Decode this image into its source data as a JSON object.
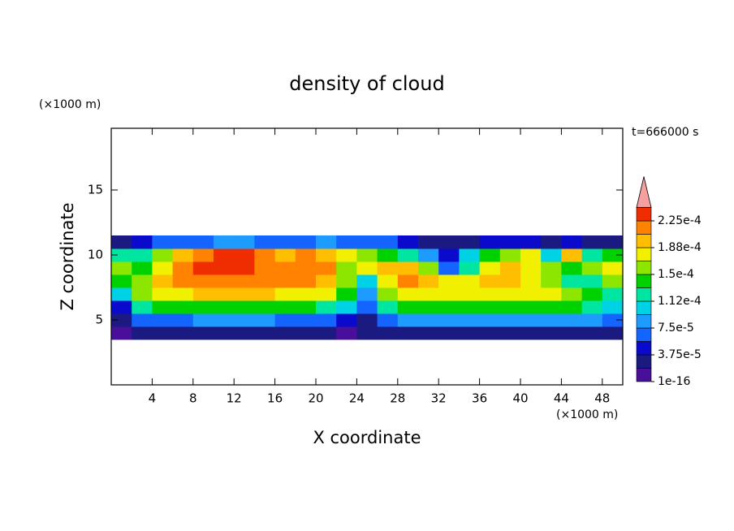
{
  "chart_data": {
    "type": "contour",
    "title": "density of cloud",
    "x_label": "X coordinate",
    "y_label": "Z coordinate",
    "x_unit": "(×1000 m)",
    "y_unit": "(×1000 m)",
    "annotation": "t=666000 s",
    "xlim": [
      0,
      50
    ],
    "ylim": [
      0,
      19.75
    ],
    "xticks": [
      4,
      8,
      12,
      16,
      20,
      24,
      28,
      32,
      36,
      40,
      44,
      48
    ],
    "yticks": [
      5,
      10,
      15
    ],
    "x": [
      1,
      3,
      5,
      7,
      9,
      11,
      13,
      15,
      17,
      19,
      21,
      23,
      25,
      27,
      29,
      31,
      33,
      35,
      37,
      39,
      41,
      43,
      45,
      47,
      49
    ],
    "z": [
      4,
      5,
      6,
      7,
      8,
      9,
      10,
      11
    ],
    "values": [
      [
        9e-06,
        2.8e-05,
        2.8e-05,
        2.8e-05,
        2.8e-05,
        2.8e-05,
        2.8e-05,
        2.8e-05,
        2.8e-05,
        2.8e-05,
        2.8e-05,
        9e-06,
        2.8e-05,
        2.8e-05,
        2.8e-05,
        2.8e-05,
        2.8e-05,
        2.8e-05,
        2.8e-05,
        2.8e-05,
        2.8e-05,
        2.8e-05,
        2.8e-05,
        2.8e-05,
        2.8e-05
      ],
      [
        2.8e-05,
        6.6e-05,
        6.6e-05,
        6.6e-05,
        8.4e-05,
        8.4e-05,
        8.4e-05,
        8.4e-05,
        6.6e-05,
        6.6e-05,
        6.6e-05,
        4.7e-05,
        2.8e-05,
        6.6e-05,
        8.4e-05,
        8.4e-05,
        8.4e-05,
        8.4e-05,
        8.4e-05,
        8.4e-05,
        8.4e-05,
        8.4e-05,
        8.4e-05,
        8.4e-05,
        6.6e-05
      ],
      [
        4.7e-05,
        0.000122,
        0.000141,
        0.000141,
        0.000141,
        0.000141,
        0.000141,
        0.000141,
        0.000141,
        0.000141,
        0.000122,
        0.000103,
        6.6e-05,
        0.000122,
        0.000141,
        0.000141,
        0.000141,
        0.000141,
        0.000141,
        0.000141,
        0.000141,
        0.000141,
        0.000141,
        0.000122,
        0.000103
      ],
      [
        0.000103,
        0.000159,
        0.000178,
        0.000178,
        0.000197,
        0.000197,
        0.000197,
        0.000197,
        0.000178,
        0.000178,
        0.000178,
        0.000141,
        8.4e-05,
        0.000159,
        0.000178,
        0.000178,
        0.000178,
        0.000178,
        0.000178,
        0.000178,
        0.000178,
        0.000178,
        0.000159,
        0.000141,
        0.000122
      ],
      [
        0.000141,
        0.000159,
        0.000197,
        0.000216,
        0.000216,
        0.000216,
        0.000216,
        0.000216,
        0.000216,
        0.000216,
        0.000197,
        0.000159,
        0.000103,
        0.000178,
        0.000216,
        0.000197,
        0.000178,
        0.000178,
        0.000197,
        0.000197,
        0.000178,
        0.000159,
        0.000122,
        0.000122,
        0.000159
      ],
      [
        0.000159,
        0.000141,
        0.000178,
        0.000216,
        0.000234,
        0.000234,
        0.000234,
        0.000216,
        0.000216,
        0.000216,
        0.000216,
        0.000159,
        0.000178,
        0.000197,
        0.000197,
        0.000159,
        6.6e-05,
        0.000122,
        0.000178,
        0.000197,
        0.000178,
        0.000159,
        0.000141,
        0.000159,
        0.000178
      ],
      [
        0.000122,
        0.000122,
        0.000159,
        0.000197,
        0.000216,
        0.000234,
        0.000234,
        0.000216,
        0.000197,
        0.000216,
        0.000197,
        0.000178,
        0.000159,
        0.000141,
        0.000122,
        8.4e-05,
        4.7e-05,
        0.000103,
        0.000141,
        0.000159,
        0.000178,
        0.000103,
        0.000197,
        0.000122,
        0.000141
      ],
      [
        2.8e-05,
        4.7e-05,
        6.6e-05,
        6.6e-05,
        6.6e-05,
        8.4e-05,
        8.4e-05,
        6.6e-05,
        6.6e-05,
        6.6e-05,
        8.4e-05,
        6.6e-05,
        6.6e-05,
        6.6e-05,
        4.7e-05,
        2.8e-05,
        2.8e-05,
        2.8e-05,
        4.7e-05,
        4.7e-05,
        4.7e-05,
        2.8e-05,
        4.7e-05,
        2.8e-05,
        2.8e-05
      ]
    ],
    "colorbar": {
      "levels": [
        1e-16,
        1.875e-05,
        3.75e-05,
        5.625e-05,
        7.5e-05,
        9.375e-05,
        0.0001125,
        0.00013125,
        0.00015,
        0.00016875,
        0.0001875,
        0.00020625,
        0.000225,
        0.00024375
      ],
      "colors": [
        "#4a0f9a",
        "#1a1a80",
        "#0a0acd",
        "#1464ff",
        "#1e9bff",
        "#00d2e6",
        "#00e6a0",
        "#00d200",
        "#8ce600",
        "#f0f000",
        "#ffbe00",
        "#ff8200",
        "#f02d00"
      ],
      "extend_color": "#f5a0a0",
      "ticks": [
        {
          "value": 1e-16,
          "label": "1e-16"
        },
        {
          "value": 3.75e-05,
          "label": "3.75e-5"
        },
        {
          "value": 7.5e-05,
          "label": "7.5e-5"
        },
        {
          "value": 0.0001125,
          "label": "1.12e-4"
        },
        {
          "value": 0.00015,
          "label": "1.5e-4"
        },
        {
          "value": 0.0001875,
          "label": "1.88e-4"
        },
        {
          "value": 0.000225,
          "label": "2.25e-4"
        }
      ]
    }
  }
}
